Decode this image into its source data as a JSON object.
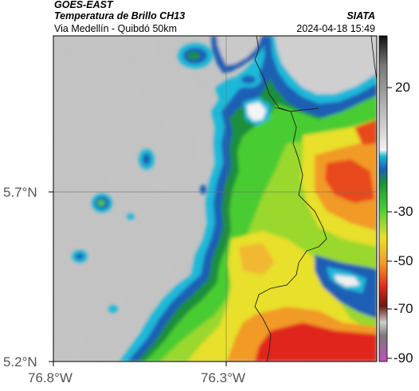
{
  "header": {
    "satellite": "GOES-EAST",
    "product": "Temperatura de Brillo CH13",
    "agency": "SIATA",
    "route": "Via Medellín - Quibdó 50km",
    "timestamp": "2024-04-18 15:49"
  },
  "axes": {
    "x_ticks": [
      "76.8°W",
      "76.3°W"
    ],
    "y_ticks": [
      "5.7°N",
      "5.2°N"
    ]
  },
  "colorbar": {
    "ticks": [
      "20",
      "-30",
      "-50",
      "-70",
      "-90"
    ],
    "scale_values": [
      20,
      -30,
      -50,
      -70,
      -90
    ]
  },
  "colors": {
    "cloud_gray": "#c4c4c4",
    "cold_blue": "#1c5fb4",
    "cyan": "#1ab8d8",
    "green": "#3cc43a",
    "yellow": "#e8e02a",
    "orange": "#f29a25",
    "red": "#e83b22",
    "magenta": "#c24fb9"
  }
}
